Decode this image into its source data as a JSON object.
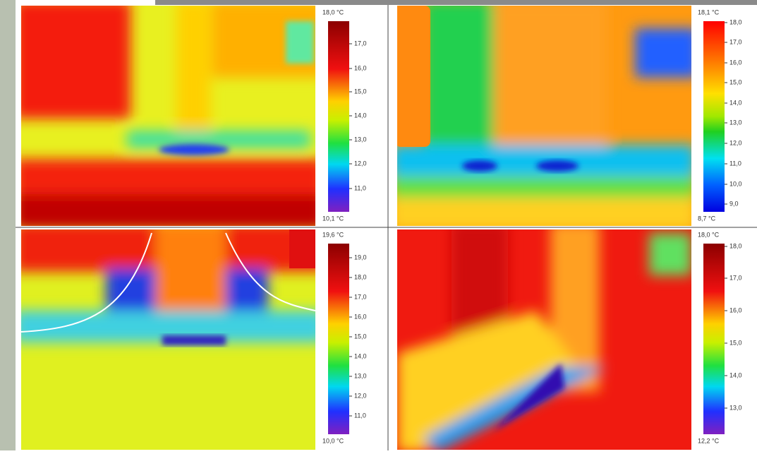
{
  "panels": [
    {
      "max_label": "18,0 °C",
      "min_label": "10,1 °C",
      "scale_ticks": [
        "17,0",
        "16,0",
        "15,0",
        "14,0",
        "13,0",
        "12,0",
        "11,0"
      ]
    },
    {
      "max_label": "18,1 °C",
      "min_label": "8,7 °C",
      "scale_ticks": [
        "18,0",
        "17,0",
        "16,0",
        "15,0",
        "14,0",
        "13,0",
        "12,0",
        "11,0",
        "10,0",
        "9,0"
      ]
    },
    {
      "max_label": "19,6 °C",
      "min_label": "10,0 °C",
      "scale_ticks": [
        "19,0",
        "18,0",
        "17,0",
        "16,0",
        "15,0",
        "14,0",
        "13,0",
        "12,0",
        "11,0"
      ]
    },
    {
      "max_label": "18,0 °C",
      "min_label": "12,2 °C",
      "scale_ticks": [
        "18,0",
        "17,0",
        "16,0",
        "15,0",
        "14,0",
        "13,0"
      ]
    }
  ]
}
